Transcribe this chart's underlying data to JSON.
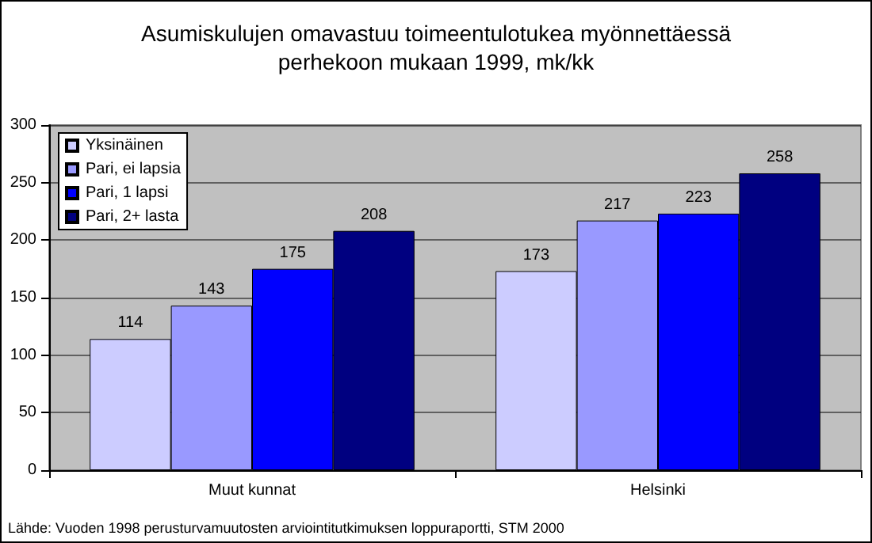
{
  "chart_data": {
    "type": "bar",
    "title": "Asumiskulujen omavastuu toimeentulotukea myönnettäessä\nperhekoon mukaan 1999, mk/kk",
    "categories": [
      "Muut kunnat",
      "Helsinki"
    ],
    "series": [
      {
        "name": "Yksinäinen",
        "color": "#ccccff",
        "values": [
          114,
          173
        ]
      },
      {
        "name": "Pari, ei lapsia",
        "color": "#9999ff",
        "values": [
          143,
          217
        ]
      },
      {
        "name": "Pari, 1 lapsi",
        "color": "#0000ff",
        "values": [
          175,
          223
        ]
      },
      {
        "name": "Pari, 2+ lasta",
        "color": "#000080",
        "values": [
          208,
          258
        ]
      }
    ],
    "ylim": [
      0,
      300
    ],
    "yticks": [
      0,
      50,
      100,
      150,
      200,
      250,
      300
    ],
    "grid": "y",
    "legend": "top left",
    "data_labels": true,
    "annotations": [
      "Lähde: Vuoden 1998 perusturvamuutosten arviointitutkimuksen loppuraportti, STM 2000"
    ]
  }
}
